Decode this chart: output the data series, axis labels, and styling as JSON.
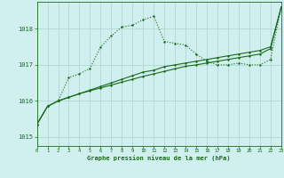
{
  "title": "Graphe pression niveau de la mer (hPa)",
  "bg_color": "#cff0ee",
  "grid_color": "#b0d8d0",
  "line_color": "#1a6b1a",
  "xlim": [
    0,
    23
  ],
  "ylim": [
    1014.75,
    1018.75
  ],
  "yticks": [
    1015,
    1016,
    1017,
    1018
  ],
  "xticks": [
    0,
    1,
    2,
    3,
    4,
    5,
    6,
    7,
    8,
    9,
    10,
    11,
    12,
    13,
    14,
    15,
    16,
    17,
    18,
    19,
    20,
    21,
    22,
    23
  ],
  "series_wavy": [
    1015.35,
    1015.85,
    1016.0,
    1016.65,
    1016.75,
    1016.9,
    1017.5,
    1017.8,
    1018.05,
    1018.1,
    1018.25,
    1018.35,
    1017.65,
    1017.6,
    1017.55,
    1017.3,
    1017.1,
    1017.0,
    1017.0,
    1017.05,
    1017.0,
    1017.0,
    1017.15,
    1018.6
  ],
  "series_diag1": [
    1015.35,
    1015.85,
    1016.0,
    1016.1,
    1016.2,
    1016.3,
    1016.4,
    1016.5,
    1016.6,
    1016.7,
    1016.8,
    1016.85,
    1016.95,
    1017.0,
    1017.05,
    1017.1,
    1017.15,
    1017.2,
    1017.25,
    1017.3,
    1017.35,
    1017.4,
    1017.5,
    1018.6
  ],
  "series_diag2": [
    1015.35,
    1015.85,
    1016.0,
    1016.1,
    1016.2,
    1016.28,
    1016.36,
    1016.44,
    1016.52,
    1016.6,
    1016.68,
    1016.75,
    1016.82,
    1016.89,
    1016.96,
    1017.0,
    1017.05,
    1017.1,
    1017.15,
    1017.2,
    1017.25,
    1017.3,
    1017.45,
    1018.6
  ]
}
